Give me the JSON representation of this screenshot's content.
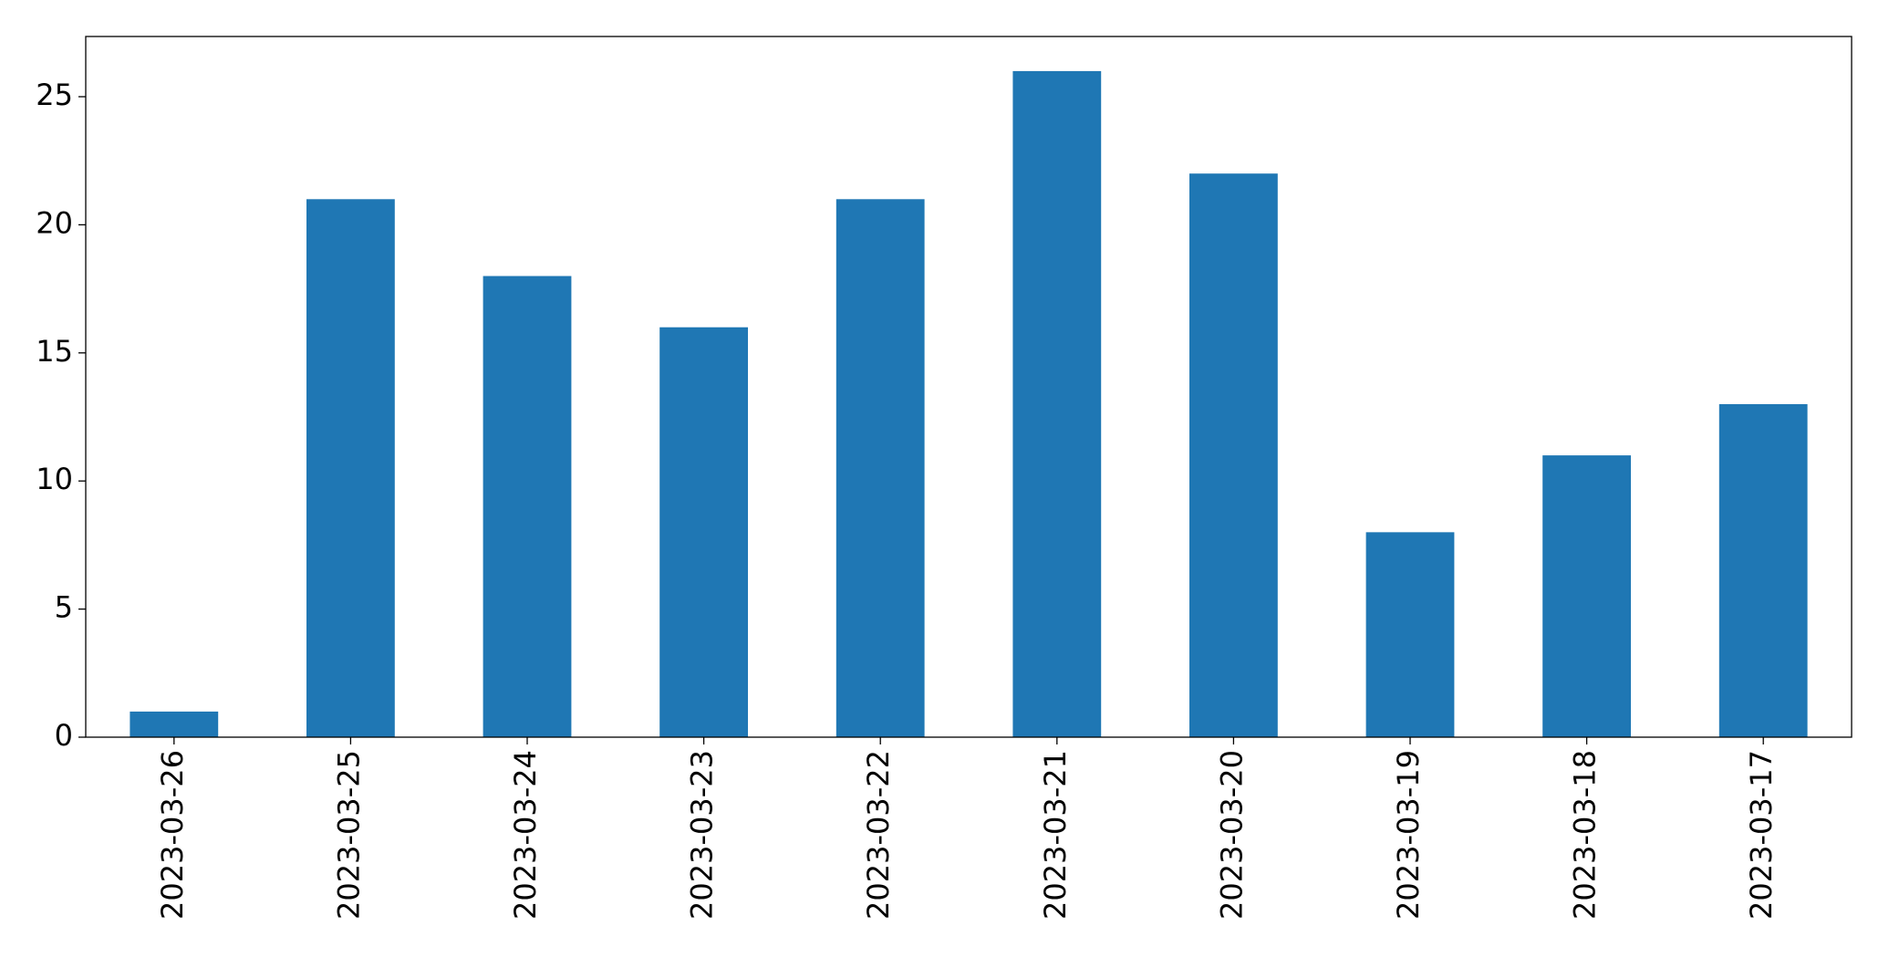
{
  "chart_data": {
    "type": "bar",
    "categories": [
      "2023-03-26",
      "2023-03-25",
      "2023-03-24",
      "2023-03-23",
      "2023-03-22",
      "2023-03-21",
      "2023-03-20",
      "2023-03-19",
      "2023-03-18",
      "2023-03-17"
    ],
    "values": [
      1,
      21,
      18,
      16,
      21,
      26,
      22,
      8,
      11,
      13
    ],
    "color": "#1f77b4",
    "ylim": [
      0,
      27.35
    ],
    "yticks": [
      0,
      5,
      10,
      15,
      20,
      25
    ],
    "grid": false
  }
}
